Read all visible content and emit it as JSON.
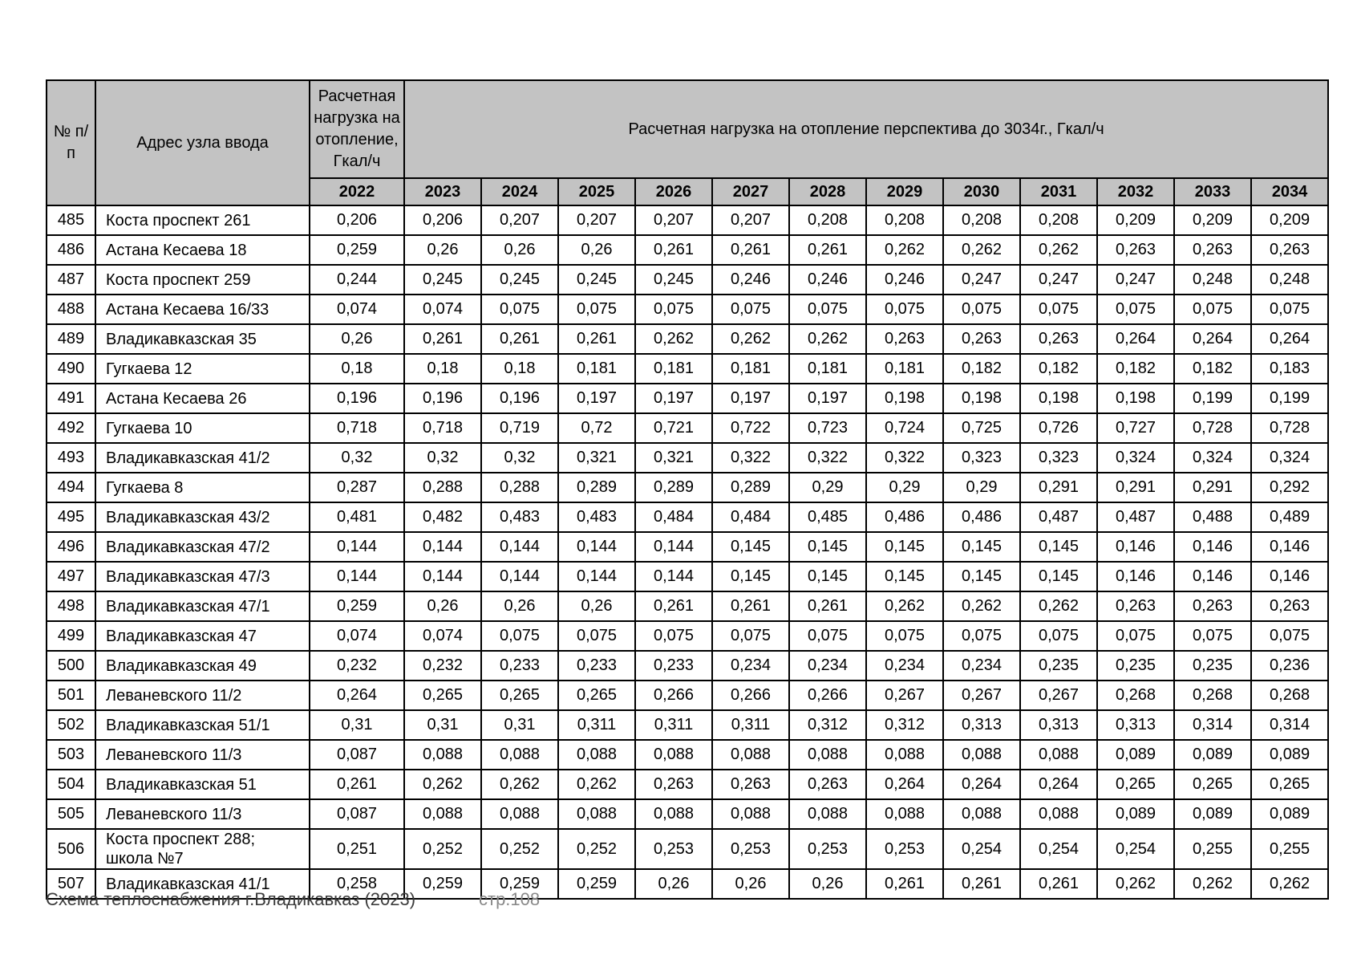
{
  "colors": {
    "header_bg": "#c3c3c3",
    "border": "#000000",
    "page_bg": "#ffffff",
    "footer_muted": "#8a8a8a"
  },
  "footer": {
    "left_text": "Схема теплоснабжения г.Владикавказ (2023)",
    "page_number": "стр.108"
  },
  "table": {
    "header": {
      "col_num": "№ п/п",
      "col_address": "Адрес узла ввода",
      "col_load_2022": "Расчетная нагрузка на отопление, Гкал/ч",
      "col_forecast": "Расчетная нагрузка на отопление перспектива до 3034г., Гкал/ч",
      "years": [
        "2022",
        "2023",
        "2024",
        "2025",
        "2026",
        "2027",
        "2028",
        "2029",
        "2030",
        "2031",
        "2032",
        "2033",
        "2034"
      ]
    },
    "rows": [
      {
        "num": "485",
        "address": "Коста проспект 261",
        "values": [
          "0,206",
          "0,206",
          "0,207",
          "0,207",
          "0,207",
          "0,207",
          "0,208",
          "0,208",
          "0,208",
          "0,208",
          "0,209",
          "0,209",
          "0,209"
        ]
      },
      {
        "num": "486",
        "address": "Астана Кесаева 18",
        "values": [
          "0,259",
          "0,26",
          "0,26",
          "0,26",
          "0,261",
          "0,261",
          "0,261",
          "0,262",
          "0,262",
          "0,262",
          "0,263",
          "0,263",
          "0,263"
        ]
      },
      {
        "num": "487",
        "address": "Коста проспект 259",
        "values": [
          "0,244",
          "0,245",
          "0,245",
          "0,245",
          "0,245",
          "0,246",
          "0,246",
          "0,246",
          "0,247",
          "0,247",
          "0,247",
          "0,248",
          "0,248"
        ]
      },
      {
        "num": "488",
        "address": "Астана Кесаева 16/33",
        "values": [
          "0,074",
          "0,074",
          "0,075",
          "0,075",
          "0,075",
          "0,075",
          "0,075",
          "0,075",
          "0,075",
          "0,075",
          "0,075",
          "0,075",
          "0,075"
        ]
      },
      {
        "num": "489",
        "address": "Владикавказская 35",
        "values": [
          "0,26",
          "0,261",
          "0,261",
          "0,261",
          "0,262",
          "0,262",
          "0,262",
          "0,263",
          "0,263",
          "0,263",
          "0,264",
          "0,264",
          "0,264"
        ]
      },
      {
        "num": "490",
        "address": "Гугкаева 12",
        "values": [
          "0,18",
          "0,18",
          "0,18",
          "0,181",
          "0,181",
          "0,181",
          "0,181",
          "0,181",
          "0,182",
          "0,182",
          "0,182",
          "0,182",
          "0,183"
        ]
      },
      {
        "num": "491",
        "address": "Астана Кесаева 26",
        "values": [
          "0,196",
          "0,196",
          "0,196",
          "0,197",
          "0,197",
          "0,197",
          "0,197",
          "0,198",
          "0,198",
          "0,198",
          "0,198",
          "0,199",
          "0,199"
        ]
      },
      {
        "num": "492",
        "address": "Гугкаева 10",
        "values": [
          "0,718",
          "0,718",
          "0,719",
          "0,72",
          "0,721",
          "0,722",
          "0,723",
          "0,724",
          "0,725",
          "0,726",
          "0,727",
          "0,728",
          "0,728"
        ]
      },
      {
        "num": "493",
        "address": "Владикавказская 41/2",
        "values": [
          "0,32",
          "0,32",
          "0,32",
          "0,321",
          "0,321",
          "0,322",
          "0,322",
          "0,322",
          "0,323",
          "0,323",
          "0,324",
          "0,324",
          "0,324"
        ]
      },
      {
        "num": "494",
        "address": "Гугкаева 8",
        "values": [
          "0,287",
          "0,288",
          "0,288",
          "0,289",
          "0,289",
          "0,289",
          "0,29",
          "0,29",
          "0,29",
          "0,291",
          "0,291",
          "0,291",
          "0,292"
        ]
      },
      {
        "num": "495",
        "address": "Владикавказская 43/2",
        "values": [
          "0,481",
          "0,482",
          "0,483",
          "0,483",
          "0,484",
          "0,484",
          "0,485",
          "0,486",
          "0,486",
          "0,487",
          "0,487",
          "0,488",
          "0,489"
        ]
      },
      {
        "num": "496",
        "address": "Владикавказская 47/2",
        "values": [
          "0,144",
          "0,144",
          "0,144",
          "0,144",
          "0,144",
          "0,145",
          "0,145",
          "0,145",
          "0,145",
          "0,145",
          "0,146",
          "0,146",
          "0,146"
        ]
      },
      {
        "num": "497",
        "address": "Владикавказская 47/3",
        "values": [
          "0,144",
          "0,144",
          "0,144",
          "0,144",
          "0,144",
          "0,145",
          "0,145",
          "0,145",
          "0,145",
          "0,145",
          "0,146",
          "0,146",
          "0,146"
        ]
      },
      {
        "num": "498",
        "address": "Владикавказская 47/1",
        "values": [
          "0,259",
          "0,26",
          "0,26",
          "0,26",
          "0,261",
          "0,261",
          "0,261",
          "0,262",
          "0,262",
          "0,262",
          "0,263",
          "0,263",
          "0,263"
        ]
      },
      {
        "num": "499",
        "address": "Владикавказская 47",
        "values": [
          "0,074",
          "0,074",
          "0,075",
          "0,075",
          "0,075",
          "0,075",
          "0,075",
          "0,075",
          "0,075",
          "0,075",
          "0,075",
          "0,075",
          "0,075"
        ]
      },
      {
        "num": "500",
        "address": "Владикавказская 49",
        "values": [
          "0,232",
          "0,232",
          "0,233",
          "0,233",
          "0,233",
          "0,234",
          "0,234",
          "0,234",
          "0,234",
          "0,235",
          "0,235",
          "0,235",
          "0,236"
        ]
      },
      {
        "num": "501",
        "address": "Леваневского 11/2",
        "values": [
          "0,264",
          "0,265",
          "0,265",
          "0,265",
          "0,266",
          "0,266",
          "0,266",
          "0,267",
          "0,267",
          "0,267",
          "0,268",
          "0,268",
          "0,268"
        ]
      },
      {
        "num": "502",
        "address": "Владикавказская 51/1",
        "values": [
          "0,31",
          "0,31",
          "0,31",
          "0,311",
          "0,311",
          "0,311",
          "0,312",
          "0,312",
          "0,313",
          "0,313",
          "0,313",
          "0,314",
          "0,314"
        ]
      },
      {
        "num": "503",
        "address": "Леваневского 11/3",
        "values": [
          "0,087",
          "0,088",
          "0,088",
          "0,088",
          "0,088",
          "0,088",
          "0,088",
          "0,088",
          "0,088",
          "0,088",
          "0,089",
          "0,089",
          "0,089"
        ]
      },
      {
        "num": "504",
        "address": "Владикавказская 51",
        "values": [
          "0,261",
          "0,262",
          "0,262",
          "0,262",
          "0,263",
          "0,263",
          "0,263",
          "0,264",
          "0,264",
          "0,264",
          "0,265",
          "0,265",
          "0,265"
        ]
      },
      {
        "num": "505",
        "address": "Леваневского 11/3",
        "values": [
          "0,087",
          "0,088",
          "0,088",
          "0,088",
          "0,088",
          "0,088",
          "0,088",
          "0,088",
          "0,088",
          "0,088",
          "0,089",
          "0,089",
          "0,089"
        ]
      },
      {
        "num": "506",
        "address": "Коста проспект 288;\nшкола №7",
        "values": [
          "0,251",
          "0,252",
          "0,252",
          "0,252",
          "0,253",
          "0,253",
          "0,253",
          "0,253",
          "0,254",
          "0,254",
          "0,254",
          "0,255",
          "0,255"
        ]
      },
      {
        "num": "507",
        "address": "Владикавказская 41/1",
        "values": [
          "0,258",
          "0,259",
          "0,259",
          "0,259",
          "0,26",
          "0,26",
          "0,26",
          "0,261",
          "0,261",
          "0,261",
          "0,262",
          "0,262",
          "0,262"
        ]
      }
    ]
  }
}
